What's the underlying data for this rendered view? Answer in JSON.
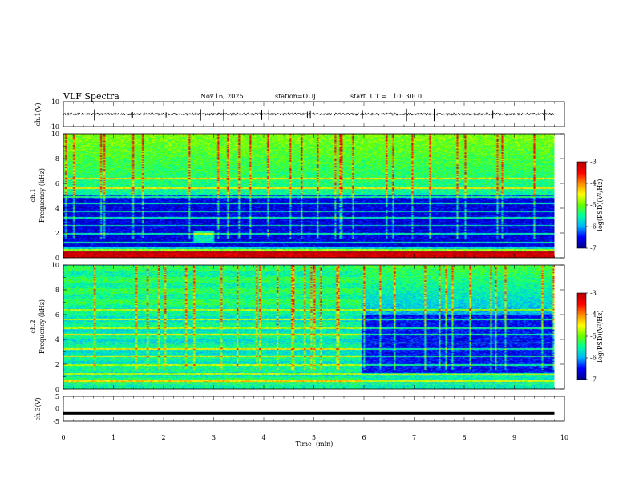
{
  "header": {
    "title": "VLF Spectra",
    "date": "Nov.16, 2025",
    "station": "station=OUJ",
    "start": "start  UT =   10: 30: 0"
  },
  "chart_data": [
    {
      "type": "line",
      "panel": "ch1-waveform",
      "ylabel": "ch.1(V)",
      "ylim": [
        -10,
        10
      ],
      "ytick_labels": [
        "10",
        "-10"
      ],
      "xlim": [
        0,
        10
      ],
      "baseline": 0,
      "trace_color": "#000000",
      "trace_end": 9.8,
      "description_free": true
    },
    {
      "type": "heatmap",
      "panel": "ch1-spectrogram",
      "ylabel_line1": "ch.1",
      "ylabel_line2": "Frequency (kHz)",
      "ylim": [
        0,
        10
      ],
      "ytick_labels": [
        "0",
        "2",
        "4",
        "6",
        "8",
        "10"
      ],
      "xlim": [
        0,
        10
      ],
      "data_end": 9.8,
      "colorbar": {
        "label": "log(PSD)(V²/Hz)",
        "range": [
          -7,
          -3
        ],
        "tick_labels": [
          "-3",
          "-4",
          "-5",
          "-6",
          "-7"
        ]
      }
    },
    {
      "type": "heatmap",
      "panel": "ch2-spectrogram",
      "ylabel_line1": "ch.2",
      "ylabel_line2": "Frequency (kHz)",
      "ylim": [
        0,
        10
      ],
      "ytick_labels": [
        "0",
        "2",
        "4",
        "6",
        "8",
        "10"
      ],
      "xlim": [
        0,
        10
      ],
      "data_end": 9.8,
      "change_time": 5.95,
      "colorbar": {
        "label": "log(PSD)(V²/Hz)",
        "range": [
          -7,
          -3
        ],
        "tick_labels": [
          "-3",
          "-4",
          "-5",
          "-6",
          "-7"
        ]
      }
    },
    {
      "type": "line",
      "panel": "ch3-waveform",
      "ylabel": "ch.3(V)",
      "ylim": [
        -5,
        5
      ],
      "ytick_labels": [
        "5",
        "0",
        "-5"
      ],
      "xlim": [
        0,
        10
      ],
      "level": -1.7,
      "xlabel": "Time  (min)",
      "xtick_labels": [
        "0",
        "1",
        "2",
        "3",
        "4",
        "5",
        "6",
        "7",
        "8",
        "9",
        "10"
      ]
    }
  ],
  "colors": {
    "colormap": [
      "#00008c",
      "#0000ff",
      "#00b4ff",
      "#00ffa0",
      "#64ff00",
      "#ffff00",
      "#ff8c00",
      "#ff0000",
      "#b40000"
    ],
    "frame": "#000000"
  }
}
